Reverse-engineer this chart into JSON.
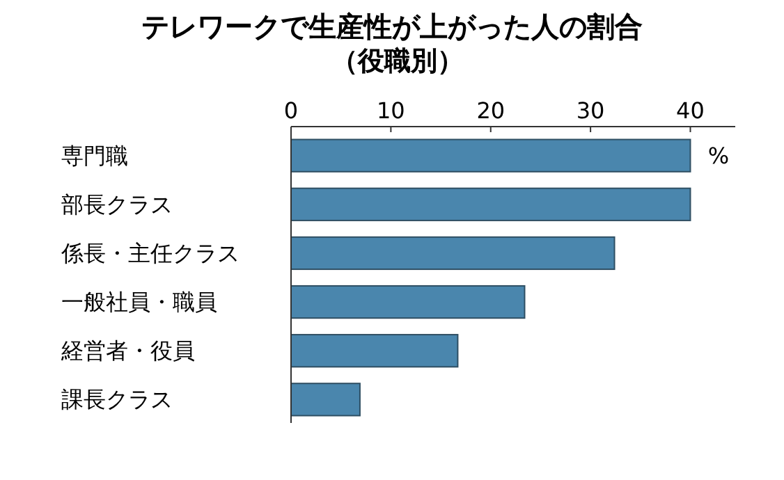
{
  "chart_data": {
    "type": "bar",
    "orientation": "horizontal",
    "title": "テレワークで生産性が上がった人の割合",
    "subtitle": "（役職別）",
    "xlabel": "%",
    "categories": [
      "専門職",
      "部長クラス",
      "係長・主任クラス",
      "一般社員・職員",
      "経営者・役員",
      "課長クラス"
    ],
    "values": [
      40,
      40,
      32.4,
      23.4,
      16.7,
      6.9
    ],
    "color": "#4a86ad",
    "xlim": [
      0,
      44.5
    ],
    "xticks": [
      0,
      10,
      20,
      30,
      40
    ],
    "grid": false
  }
}
